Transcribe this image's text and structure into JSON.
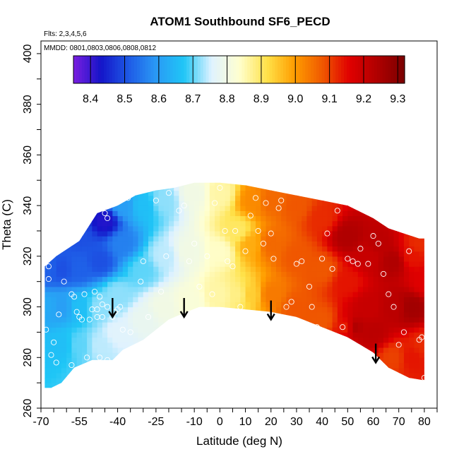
{
  "chart_data": {
    "type": "heatmap",
    "title": "ATOM1 Southbound SF6_PECD",
    "annotations": [
      "Flts: 2,3,4,5,6",
      "MMDD: 0801,0803,0806,0808,0812"
    ],
    "xlabel": "Latitude (deg N)",
    "ylabel": "Theta (C)",
    "xlim": [
      -70,
      85
    ],
    "ylim": [
      260,
      405
    ],
    "x_ticks": [
      -70,
      -55,
      -40,
      -25,
      -10,
      0,
      10,
      20,
      30,
      40,
      50,
      60,
      70,
      80
    ],
    "y_ticks": [
      260,
      280,
      300,
      320,
      340,
      360,
      380,
      400
    ],
    "grid": false,
    "colorbar": {
      "placement": "top-inside",
      "range": [
        8.35,
        9.32
      ],
      "ticks": [
        8.4,
        8.5,
        8.6,
        8.7,
        8.8,
        8.9,
        9.0,
        9.1,
        9.2,
        9.3
      ],
      "colors": [
        "#7a1fe0",
        "#1414c8",
        "#1e5ae6",
        "#2a9af5",
        "#1fc6f6",
        "#dff2ff",
        "#ffffd0",
        "#ffe24a",
        "#ff9e00",
        "#f05a00",
        "#e00000",
        "#b00000",
        "#7a0000"
      ]
    },
    "arrows_x": [
      -42,
      -14,
      20,
      61
    ],
    "field_top": [
      [
        -68.5,
        316
      ],
      [
        -64,
        320
      ],
      [
        -55,
        326
      ],
      [
        -48,
        337
      ],
      [
        -40,
        340
      ],
      [
        -33,
        344
      ],
      [
        -25,
        346
      ],
      [
        -18,
        347
      ],
      [
        -10,
        349
      ],
      [
        0,
        349
      ],
      [
        10,
        348
      ],
      [
        20,
        346
      ],
      [
        30,
        344
      ],
      [
        40,
        342
      ],
      [
        50,
        340
      ],
      [
        60,
        335
      ],
      [
        66,
        331
      ],
      [
        72,
        329
      ],
      [
        78,
        327
      ],
      [
        80,
        327
      ]
    ],
    "field_bottom": [
      [
        80,
        271
      ],
      [
        74,
        272
      ],
      [
        66,
        276
      ],
      [
        60,
        282
      ],
      [
        50,
        288
      ],
      [
        40,
        292
      ],
      [
        30,
        296
      ],
      [
        20,
        298
      ],
      [
        10,
        299
      ],
      [
        0,
        300
      ],
      [
        -8,
        300
      ],
      [
        -13,
        298
      ],
      [
        -20,
        295
      ],
      [
        -30,
        287
      ],
      [
        -38,
        283
      ],
      [
        -42,
        279
      ],
      [
        -50,
        279
      ],
      [
        -57,
        276
      ],
      [
        -62,
        270
      ],
      [
        -66,
        268
      ],
      [
        -68.5,
        268
      ]
    ],
    "field_points": [
      {
        "x": -67,
        "y": 300,
        "v": 8.62
      },
      {
        "x": -67,
        "y": 315,
        "v": 8.52
      },
      {
        "x": -62,
        "y": 285,
        "v": 8.66
      },
      {
        "x": -62,
        "y": 300,
        "v": 8.6
      },
      {
        "x": -62,
        "y": 315,
        "v": 8.5
      },
      {
        "x": -55,
        "y": 285,
        "v": 8.7
      },
      {
        "x": -55,
        "y": 300,
        "v": 8.66
      },
      {
        "x": -55,
        "y": 315,
        "v": 8.52
      },
      {
        "x": -55,
        "y": 328,
        "v": 8.5
      },
      {
        "x": -47,
        "y": 285,
        "v": 8.74
      },
      {
        "x": -47,
        "y": 300,
        "v": 8.72
      },
      {
        "x": -47,
        "y": 318,
        "v": 8.5
      },
      {
        "x": -45,
        "y": 334,
        "v": 8.42
      },
      {
        "x": -40,
        "y": 290,
        "v": 8.76
      },
      {
        "x": -40,
        "y": 305,
        "v": 8.72
      },
      {
        "x": -38,
        "y": 325,
        "v": 8.56
      },
      {
        "x": -38,
        "y": 340,
        "v": 8.6
      },
      {
        "x": -30,
        "y": 295,
        "v": 8.78
      },
      {
        "x": -30,
        "y": 315,
        "v": 8.7
      },
      {
        "x": -30,
        "y": 340,
        "v": 8.66
      },
      {
        "x": -22,
        "y": 300,
        "v": 8.8
      },
      {
        "x": -22,
        "y": 320,
        "v": 8.74
      },
      {
        "x": -22,
        "y": 342,
        "v": 8.72
      },
      {
        "x": -12,
        "y": 302,
        "v": 8.82
      },
      {
        "x": -12,
        "y": 322,
        "v": 8.8
      },
      {
        "x": -10,
        "y": 345,
        "v": 8.8
      },
      {
        "x": 0,
        "y": 305,
        "v": 8.86
      },
      {
        "x": 0,
        "y": 322,
        "v": 8.84
      },
      {
        "x": 0,
        "y": 345,
        "v": 8.86
      },
      {
        "x": 7,
        "y": 305,
        "v": 8.88
      },
      {
        "x": 7,
        "y": 330,
        "v": 8.9
      },
      {
        "x": 12,
        "y": 305,
        "v": 8.94
      },
      {
        "x": 12,
        "y": 325,
        "v": 8.98
      },
      {
        "x": 13,
        "y": 342,
        "v": 9.02
      },
      {
        "x": 20,
        "y": 305,
        "v": 9.04
      },
      {
        "x": 20,
        "y": 325,
        "v": 9.06
      },
      {
        "x": 20,
        "y": 342,
        "v": 9.06
      },
      {
        "x": 30,
        "y": 300,
        "v": 9.08
      },
      {
        "x": 30,
        "y": 320,
        "v": 9.08
      },
      {
        "x": 30,
        "y": 340,
        "v": 9.08
      },
      {
        "x": 40,
        "y": 295,
        "v": 9.08
      },
      {
        "x": 40,
        "y": 315,
        "v": 9.08
      },
      {
        "x": 40,
        "y": 335,
        "v": 9.12
      },
      {
        "x": 50,
        "y": 292,
        "v": 9.12
      },
      {
        "x": 50,
        "y": 310,
        "v": 9.14
      },
      {
        "x": 50,
        "y": 328,
        "v": 9.24
      },
      {
        "x": 52,
        "y": 292,
        "v": 9.25
      },
      {
        "x": 58,
        "y": 300,
        "v": 9.2
      },
      {
        "x": 58,
        "y": 320,
        "v": 9.2
      },
      {
        "x": 60,
        "y": 290,
        "v": 9.22
      },
      {
        "x": 62,
        "y": 325,
        "v": 9.22
      },
      {
        "x": 68,
        "y": 280,
        "v": 9.1
      },
      {
        "x": 68,
        "y": 300,
        "v": 9.22
      },
      {
        "x": 68,
        "y": 318,
        "v": 9.24
      },
      {
        "x": 75,
        "y": 280,
        "v": 9.14
      },
      {
        "x": 75,
        "y": 300,
        "v": 9.26
      },
      {
        "x": 75,
        "y": 320,
        "v": 9.14
      },
      {
        "x": 80,
        "y": 285,
        "v": 9.12
      },
      {
        "x": 80,
        "y": 310,
        "v": 9.16
      },
      {
        "x": 78,
        "y": 325,
        "v": 9.12
      }
    ],
    "obs_points": [
      [
        -68,
        291
      ],
      [
        -67,
        311
      ],
      [
        -67,
        316
      ],
      [
        -63,
        297
      ],
      [
        -61,
        310
      ],
      [
        -58,
        305
      ],
      [
        -57,
        304
      ],
      [
        -56,
        298
      ],
      [
        -55,
        296
      ],
      [
        -54,
        295
      ],
      [
        -53,
        305
      ],
      [
        -51,
        295
      ],
      [
        -50,
        299
      ],
      [
        -49,
        306
      ],
      [
        -48,
        299
      ],
      [
        -48,
        296
      ],
      [
        -47,
        304
      ],
      [
        -46,
        301
      ],
      [
        -46,
        296
      ],
      [
        -45,
        337
      ],
      [
        -44,
        335
      ],
      [
        -44,
        300
      ],
      [
        -42,
        296
      ],
      [
        -41,
        298
      ],
      [
        -40,
        299
      ],
      [
        -39,
        300
      ],
      [
        -38,
        291
      ],
      [
        -36,
        343
      ],
      [
        -35,
        290
      ],
      [
        -31,
        310
      ],
      [
        -30,
        318
      ],
      [
        -28,
        296
      ],
      [
        -25,
        342
      ],
      [
        -23,
        306
      ],
      [
        -21,
        320
      ],
      [
        -20,
        345
      ],
      [
        -16,
        338
      ],
      [
        -14,
        340
      ],
      [
        -12,
        318
      ],
      [
        -10,
        325
      ],
      [
        -8,
        308
      ],
      [
        -5,
        320
      ],
      [
        -3,
        305
      ],
      [
        -2,
        341
      ],
      [
        0,
        347
      ],
      [
        2,
        330
      ],
      [
        3,
        318
      ],
      [
        5,
        316
      ],
      [
        6,
        330
      ],
      [
        8,
        300
      ],
      [
        10,
        322
      ],
      [
        12,
        336
      ],
      [
        14,
        343
      ],
      [
        15,
        330
      ],
      [
        17,
        325
      ],
      [
        18,
        341
      ],
      [
        20,
        329
      ],
      [
        21,
        319
      ],
      [
        23,
        339
      ],
      [
        24,
        342
      ],
      [
        26,
        300
      ],
      [
        28,
        302
      ],
      [
        30,
        317
      ],
      [
        32,
        318
      ],
      [
        35,
        308
      ],
      [
        36,
        300
      ],
      [
        38,
        292
      ],
      [
        40,
        319
      ],
      [
        42,
        329
      ],
      [
        44,
        315
      ],
      [
        46,
        338
      ],
      [
        48,
        292
      ],
      [
        50,
        319
      ],
      [
        52,
        318
      ],
      [
        54,
        317
      ],
      [
        55,
        323
      ],
      [
        58,
        317
      ],
      [
        60,
        328
      ],
      [
        62,
        325
      ],
      [
        64,
        313
      ],
      [
        66,
        305
      ],
      [
        68,
        300
      ],
      [
        70,
        285
      ],
      [
        72,
        290
      ],
      [
        74,
        322
      ],
      [
        78,
        287
      ],
      [
        79,
        288
      ],
      [
        80,
        272
      ],
      [
        -58,
        277
      ],
      [
        -52,
        280
      ],
      [
        -47,
        280
      ],
      [
        -44,
        279
      ],
      [
        -64,
        278
      ],
      [
        -66,
        281
      ],
      [
        -65,
        286
      ]
    ]
  }
}
